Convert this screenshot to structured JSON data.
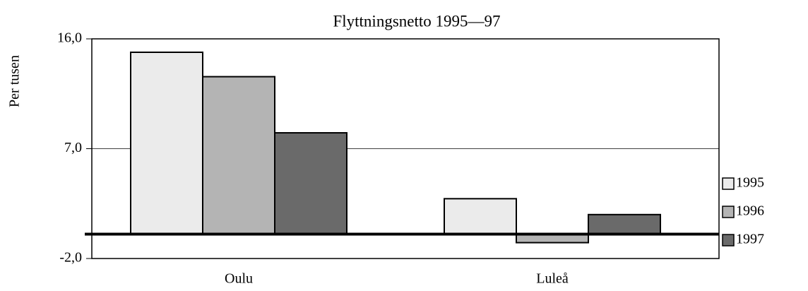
{
  "chart_data": {
    "type": "bar",
    "title": "Flyttningsnetto 1995—97",
    "y_label": "Per tusen",
    "categories": [
      "Oulu",
      "Luleå"
    ],
    "series": [
      {
        "name": "1995",
        "color": "#ebebeb",
        "values": [
          14.9,
          2.9
        ]
      },
      {
        "name": "1996",
        "color": "#b4b4b4",
        "values": [
          12.9,
          -0.7
        ]
      },
      {
        "name": "1997",
        "color": "#6a6a6a",
        "values": [
          8.3,
          1.6
        ]
      }
    ],
    "ylim": [
      -2,
      16
    ],
    "yticks": [
      {
        "value": -2,
        "label": "-2,0"
      },
      {
        "value": 7,
        "label": "7,0"
      },
      {
        "value": 16,
        "label": "16,0"
      }
    ],
    "grid": true,
    "legend": "right"
  }
}
